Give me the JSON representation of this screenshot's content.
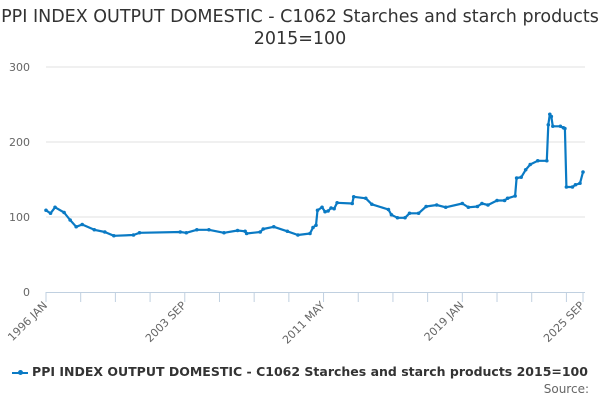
{
  "chart_data": {
    "type": "line",
    "title": "PPI INDEX OUTPUT DOMESTIC - C1062 Starches and starch products 2015=100",
    "xlabel": "",
    "ylabel": "",
    "ylim": [
      0,
      300
    ],
    "yticks": [
      0,
      100,
      200,
      300
    ],
    "xlim": [
      "1996-01",
      "2025-09"
    ],
    "xtick_labels": [
      "1996 JAN",
      "2003 SEP",
      "2011 MAY",
      "2019 JAN",
      "2025 SEP"
    ],
    "xtick_dates": [
      "1996-01",
      "2003-09",
      "2011-05",
      "2019-01",
      "2025-09"
    ],
    "grid": "horizontal",
    "legend_position": "bottom",
    "color": "#0a7ac4",
    "series": [
      {
        "name": "PPI INDEX OUTPUT DOMESTIC - C1062 Starches and starch products 2015=100",
        "points": [
          [
            "1996-01",
            109
          ],
          [
            "1996-04",
            105
          ],
          [
            "1996-07",
            113
          ],
          [
            "1997-01",
            106
          ],
          [
            "1997-05",
            96
          ],
          [
            "1997-09",
            87
          ],
          [
            "1998-01",
            90
          ],
          [
            "1998-09",
            83
          ],
          [
            "1999-04",
            80
          ],
          [
            "1999-10",
            75
          ],
          [
            "2000-11",
            76
          ],
          [
            "2001-03",
            79
          ],
          [
            "2003-06",
            80
          ],
          [
            "2003-10",
            79
          ],
          [
            "2004-05",
            83
          ],
          [
            "2005-01",
            83
          ],
          [
            "2005-11",
            79
          ],
          [
            "2006-08",
            82
          ],
          [
            "2007-01",
            81
          ],
          [
            "2007-02",
            78
          ],
          [
            "2007-11",
            80
          ],
          [
            "2008-01",
            84
          ],
          [
            "2008-08",
            87
          ],
          [
            "2009-05",
            81
          ],
          [
            "2009-12",
            76
          ],
          [
            "2010-08",
            78
          ],
          [
            "2010-10",
            86
          ],
          [
            "2010-12",
            89
          ],
          [
            "2011-01",
            109
          ],
          [
            "2011-04",
            113
          ],
          [
            "2011-06",
            107
          ],
          [
            "2011-08",
            108
          ],
          [
            "2011-10",
            112
          ],
          [
            "2011-12",
            111
          ],
          [
            "2012-02",
            119
          ],
          [
            "2012-12",
            118
          ],
          [
            "2013-01",
            127
          ],
          [
            "2013-09",
            125
          ],
          [
            "2014-01",
            117
          ],
          [
            "2014-12",
            110
          ],
          [
            "2015-02",
            103
          ],
          [
            "2015-06",
            99
          ],
          [
            "2015-11",
            99
          ],
          [
            "2016-02",
            105
          ],
          [
            "2016-08",
            105
          ],
          [
            "2017-01",
            114
          ],
          [
            "2017-08",
            116
          ],
          [
            "2018-02",
            113
          ],
          [
            "2019-01",
            118
          ],
          [
            "2019-05",
            113
          ],
          [
            "2019-11",
            114
          ],
          [
            "2020-02",
            118
          ],
          [
            "2020-06",
            116
          ],
          [
            "2020-12",
            122
          ],
          [
            "2021-05",
            122
          ],
          [
            "2021-07",
            125
          ],
          [
            "2021-12",
            128
          ],
          [
            "2022-01",
            152
          ],
          [
            "2022-04",
            153
          ],
          [
            "2022-07",
            163
          ],
          [
            "2022-10",
            170
          ],
          [
            "2023-03",
            175
          ],
          [
            "2023-09",
            175
          ],
          [
            "2023-10",
            223
          ],
          [
            "2023-11",
            237
          ],
          [
            "2023-12",
            234
          ],
          [
            "2024-01",
            221
          ],
          [
            "2024-06",
            221
          ],
          [
            "2024-08",
            219
          ],
          [
            "2024-09",
            218
          ],
          [
            "2024-10",
            140
          ],
          [
            "2025-02",
            140
          ],
          [
            "2025-04",
            143
          ],
          [
            "2025-07",
            145
          ],
          [
            "2025-09",
            160
          ]
        ]
      }
    ]
  },
  "legend": {
    "label": "PPI INDEX OUTPUT DOMESTIC - C1062 Starches and starch products 2015=100"
  },
  "source": "Source:"
}
